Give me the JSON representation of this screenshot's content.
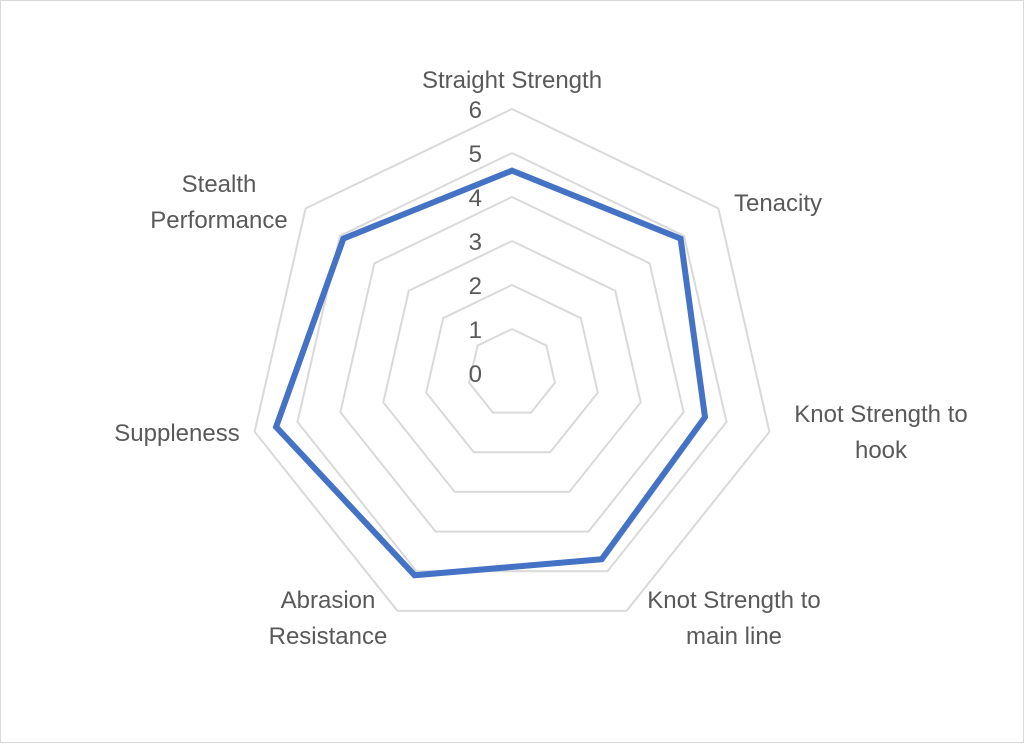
{
  "chart_data": {
    "type": "radar",
    "title": "",
    "categories": [
      [
        "Straight Strength"
      ],
      [
        "Tenacity"
      ],
      [
        "Knot Strength to",
        "hook"
      ],
      [
        "Knot Strength to",
        "main line"
      ],
      [
        "Abrasion",
        "Resistance"
      ],
      [
        "Suppleness"
      ],
      [
        "Stealth",
        "Performance"
      ]
    ],
    "series": [
      {
        "values": [
          4.6,
          4.9,
          4.5,
          4.7,
          5.1,
          5.5,
          4.9
        ],
        "color": "#4472c4"
      }
    ],
    "rlim": [
      0,
      6
    ],
    "ticks": [
      "0",
      "1",
      "2",
      "3",
      "4",
      "5",
      "6"
    ],
    "grid": true,
    "legend": "none",
    "grid_color": "#d9d9d9"
  }
}
